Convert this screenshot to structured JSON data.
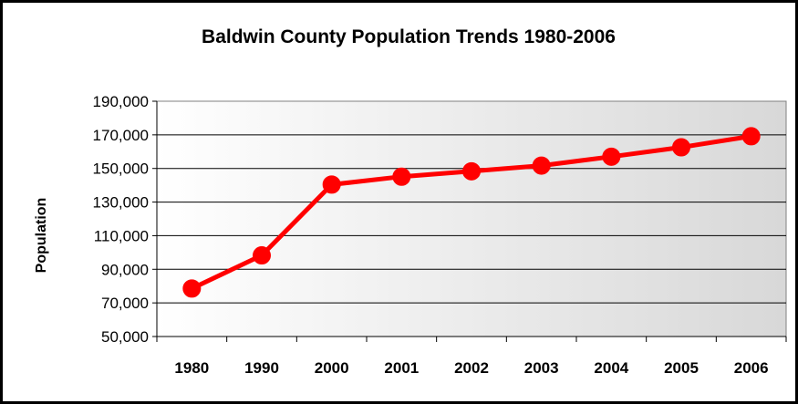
{
  "chart_data": {
    "type": "line",
    "title": "Baldwin County Population Trends 1980-2006",
    "ylabel": "Population",
    "xlabel": "",
    "categories": [
      "1980",
      "1990",
      "2000",
      "2001",
      "2002",
      "2003",
      "2004",
      "2005",
      "2006"
    ],
    "y_ticks": [
      "50,000",
      "70,000",
      "90,000",
      "110,000",
      "130,000",
      "150,000",
      "170,000",
      "190,000"
    ],
    "ylim": [
      50000,
      190000
    ],
    "series": [
      {
        "values": [
          78556,
          98280,
          140415,
          145100,
          148300,
          151700,
          157000,
          162600,
          169162
        ],
        "color": "#ff0000"
      }
    ],
    "grid": true,
    "legend": "none",
    "plot_background": "gradient-white-to-gray"
  }
}
